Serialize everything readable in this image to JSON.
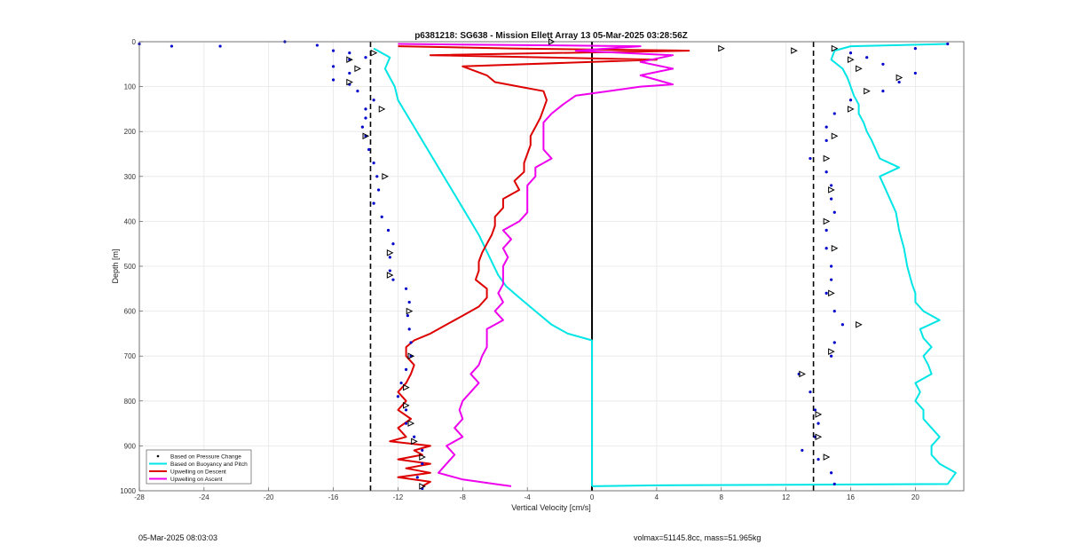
{
  "chart_data": {
    "type": "scatter",
    "title": "p6381218: SG638 - Mission Ellett Array 13 05-Mar-2025 03:28:56Z",
    "xlabel": "Vertical Velocity [cm/s]",
    "ylabel": "Depth [m]",
    "xlim": [
      -28,
      23
    ],
    "ylim": [
      1000,
      0
    ],
    "x_ticks": [
      -28,
      -24,
      -20,
      -16,
      -12,
      -8,
      -4,
      0,
      4,
      8,
      12,
      16,
      20
    ],
    "y_ticks": [
      0,
      100,
      200,
      300,
      400,
      500,
      600,
      700,
      800,
      900,
      1000
    ],
    "grid": true,
    "legend_position": "bottom-left",
    "reference_lines": {
      "dashed_x": [
        -13.7,
        13.7
      ],
      "solid_x": [
        0
      ]
    },
    "series": [
      {
        "name": "Based on Pressure Change",
        "style": "points",
        "color": "#0000cc",
        "descent": [
          [
            -28,
            5
          ],
          [
            -26,
            10
          ],
          [
            -23,
            10
          ],
          [
            -19,
            0
          ],
          [
            -17,
            8
          ],
          [
            -16,
            20
          ],
          [
            -15,
            25
          ],
          [
            -14,
            35
          ],
          [
            -15,
            40
          ],
          [
            -16,
            55
          ],
          [
            -15,
            70
          ],
          [
            -16,
            85
          ],
          [
            -15,
            95
          ],
          [
            -14.5,
            110
          ],
          [
            -13.5,
            130
          ],
          [
            -14,
            150
          ],
          [
            -14,
            170
          ],
          [
            -14.2,
            190
          ],
          [
            -14,
            210
          ],
          [
            -13.8,
            240
          ],
          [
            -13.5,
            270
          ],
          [
            -13.3,
            300
          ],
          [
            -13.2,
            330
          ],
          [
            -13.5,
            360
          ],
          [
            -13,
            390
          ],
          [
            -12.6,
            420
          ],
          [
            -12.3,
            450
          ],
          [
            -12.5,
            480
          ],
          [
            -12.5,
            510
          ],
          [
            -12.3,
            530
          ],
          [
            -11.5,
            550
          ],
          [
            -11.3,
            580
          ],
          [
            -11.4,
            610
          ],
          [
            -11.3,
            640
          ],
          [
            -11.2,
            670
          ],
          [
            -11.2,
            700
          ],
          [
            -11.5,
            730
          ],
          [
            -11.8,
            760
          ],
          [
            -12,
            790
          ],
          [
            -11.5,
            820
          ],
          [
            -11.5,
            850
          ],
          [
            -11,
            880
          ],
          [
            -10.5,
            910
          ],
          [
            -10.5,
            940
          ],
          [
            -10.8,
            970
          ],
          [
            -10.5,
            995
          ]
        ],
        "ascent": [
          [
            22,
            5
          ],
          [
            20,
            15
          ],
          [
            16,
            25
          ],
          [
            17,
            35
          ],
          [
            18,
            50
          ],
          [
            20,
            70
          ],
          [
            19,
            90
          ],
          [
            18,
            110
          ],
          [
            16,
            130
          ],
          [
            15,
            160
          ],
          [
            14.5,
            190
          ],
          [
            14.5,
            220
          ],
          [
            13.5,
            260
          ],
          [
            14.5,
            290
          ],
          [
            14.8,
            320
          ],
          [
            14.8,
            350
          ],
          [
            15,
            380
          ],
          [
            14.5,
            420
          ],
          [
            14.5,
            460
          ],
          [
            14.8,
            500
          ],
          [
            14.8,
            530
          ],
          [
            14.5,
            560
          ],
          [
            15,
            600
          ],
          [
            15.5,
            630
          ],
          [
            15,
            670
          ],
          [
            14.8,
            700
          ],
          [
            12.8,
            740
          ],
          [
            13.5,
            780
          ],
          [
            13.8,
            820
          ],
          [
            14,
            850
          ],
          [
            13.8,
            880
          ],
          [
            13,
            910
          ],
          [
            14,
            930
          ],
          [
            14.8,
            960
          ],
          [
            15,
            985
          ]
        ]
      },
      {
        "name": "Based on Buoyancy and Pitch",
        "style": "line",
        "color": "#00e5e5",
        "descent": [
          [
            -13.5,
            15
          ],
          [
            -12.5,
            35
          ],
          [
            -12.8,
            60
          ],
          [
            -12.5,
            80
          ],
          [
            -12.2,
            100
          ],
          [
            -12,
            130
          ],
          [
            -11.5,
            160
          ],
          [
            -11,
            190
          ],
          [
            -10.5,
            220
          ],
          [
            -10,
            250
          ],
          [
            -9.5,
            280
          ],
          [
            -9,
            310
          ],
          [
            -8.5,
            340
          ],
          [
            -8,
            370
          ],
          [
            -7.5,
            400
          ],
          [
            -7,
            430
          ],
          [
            -6.6,
            460
          ],
          [
            -6.2,
            490
          ],
          [
            -5.8,
            520
          ],
          [
            -5.3,
            545
          ],
          [
            -4.5,
            570
          ],
          [
            -3.5,
            600
          ],
          [
            -2.5,
            630
          ],
          [
            -1.5,
            650
          ],
          [
            -0.3,
            662
          ],
          [
            0,
            665
          ],
          [
            0,
            990
          ]
        ],
        "ascent": [
          [
            0,
            990
          ],
          [
            4,
            988
          ],
          [
            22,
            985
          ],
          [
            22.5,
            960
          ],
          [
            21.5,
            940
          ],
          [
            21,
            920
          ],
          [
            21,
            900
          ],
          [
            21.5,
            880
          ],
          [
            21,
            860
          ],
          [
            20.5,
            840
          ],
          [
            20.5,
            820
          ],
          [
            20,
            800
          ],
          [
            20.3,
            780
          ],
          [
            20,
            760
          ],
          [
            21,
            740
          ],
          [
            20.8,
            720
          ],
          [
            20.5,
            700
          ],
          [
            21,
            680
          ],
          [
            20.5,
            660
          ],
          [
            20.3,
            640
          ],
          [
            21.5,
            620
          ],
          [
            20.5,
            600
          ],
          [
            20,
            580
          ],
          [
            20,
            560
          ],
          [
            19.8,
            540
          ],
          [
            19.5,
            500
          ],
          [
            19.3,
            460
          ],
          [
            19,
            420
          ],
          [
            18.8,
            380
          ],
          [
            18.3,
            340
          ],
          [
            17.8,
            300
          ],
          [
            19,
            280
          ],
          [
            17.8,
            260
          ],
          [
            17.3,
            220
          ],
          [
            17,
            200
          ],
          [
            16.8,
            180
          ],
          [
            16.5,
            160
          ],
          [
            16.5,
            140
          ],
          [
            16.2,
            120
          ],
          [
            16,
            100
          ],
          [
            15.8,
            80
          ],
          [
            15.5,
            60
          ],
          [
            14.8,
            40
          ],
          [
            15,
            20
          ],
          [
            16,
            10
          ],
          [
            22,
            5
          ]
        ]
      },
      {
        "name": "Upwelling on Descent",
        "style": "line",
        "color": "#dd0000",
        "values": [
          [
            -12,
            10
          ],
          [
            -5,
            15
          ],
          [
            6,
            20
          ],
          [
            -10,
            30
          ],
          [
            4,
            40
          ],
          [
            -8,
            55
          ],
          [
            -6.5,
            75
          ],
          [
            -6,
            90
          ],
          [
            -4.5,
            100
          ],
          [
            -3,
            110
          ],
          [
            -2.8,
            130
          ],
          [
            -3,
            150
          ],
          [
            -3.2,
            170
          ],
          [
            -3.5,
            190
          ],
          [
            -3.8,
            210
          ],
          [
            -3.8,
            230
          ],
          [
            -4,
            250
          ],
          [
            -4.2,
            270
          ],
          [
            -4.2,
            290
          ],
          [
            -4.8,
            310
          ],
          [
            -4.5,
            330
          ],
          [
            -5.5,
            350
          ],
          [
            -5.5,
            370
          ],
          [
            -6,
            390
          ],
          [
            -6,
            410
          ],
          [
            -6.2,
            430
          ],
          [
            -6.5,
            450
          ],
          [
            -6.8,
            470
          ],
          [
            -7,
            490
          ],
          [
            -7,
            510
          ],
          [
            -7.2,
            530
          ],
          [
            -6.5,
            550
          ],
          [
            -6.5,
            570
          ],
          [
            -7,
            590
          ],
          [
            -8,
            610
          ],
          [
            -9,
            630
          ],
          [
            -10,
            650
          ],
          [
            -11,
            665
          ],
          [
            -11.5,
            680
          ],
          [
            -11.5,
            700
          ],
          [
            -11,
            720
          ],
          [
            -11.2,
            740
          ],
          [
            -11.5,
            760
          ],
          [
            -12,
            780
          ],
          [
            -11.5,
            800
          ],
          [
            -12,
            820
          ],
          [
            -11.2,
            840
          ],
          [
            -12,
            860
          ],
          [
            -11.5,
            880
          ],
          [
            -12.5,
            890
          ],
          [
            -10,
            900
          ],
          [
            -11,
            910
          ],
          [
            -10.5,
            920
          ],
          [
            -12,
            930
          ],
          [
            -10,
            940
          ],
          [
            -11.5,
            950
          ],
          [
            -10,
            960
          ],
          [
            -12,
            970
          ],
          [
            -10,
            980
          ],
          [
            -10.5,
            990
          ]
        ]
      },
      {
        "name": "Upwelling on Ascent",
        "style": "line",
        "color": "#ee00ee",
        "values": [
          [
            -5,
            990
          ],
          [
            -6,
            985
          ],
          [
            -8,
            975
          ],
          [
            -9.5,
            960
          ],
          [
            -9,
            940
          ],
          [
            -8.5,
            920
          ],
          [
            -9,
            900
          ],
          [
            -8,
            880
          ],
          [
            -8.5,
            860
          ],
          [
            -8,
            840
          ],
          [
            -8.2,
            820
          ],
          [
            -8,
            800
          ],
          [
            -7.5,
            780
          ],
          [
            -7,
            760
          ],
          [
            -7.5,
            740
          ],
          [
            -7,
            720
          ],
          [
            -6.8,
            700
          ],
          [
            -6.5,
            680
          ],
          [
            -6.5,
            660
          ],
          [
            -6.5,
            640
          ],
          [
            -5.5,
            620
          ],
          [
            -6,
            600
          ],
          [
            -5.5,
            580
          ],
          [
            -5.8,
            560
          ],
          [
            -5.5,
            540
          ],
          [
            -5.5,
            520
          ],
          [
            -5.5,
            500
          ],
          [
            -5.2,
            480
          ],
          [
            -5.5,
            460
          ],
          [
            -5,
            440
          ],
          [
            -5.5,
            420
          ],
          [
            -4.5,
            400
          ],
          [
            -4,
            380
          ],
          [
            -4,
            360
          ],
          [
            -4,
            340
          ],
          [
            -4,
            320
          ],
          [
            -3.5,
            300
          ],
          [
            -3.5,
            280
          ],
          [
            -2.5,
            260
          ],
          [
            -3,
            240
          ],
          [
            -3,
            220
          ],
          [
            -3,
            200
          ],
          [
            -3,
            180
          ],
          [
            -2.5,
            160
          ],
          [
            -1.8,
            140
          ],
          [
            -1,
            120
          ],
          [
            1,
            110
          ],
          [
            3,
            100
          ],
          [
            5,
            95
          ],
          [
            4,
            85
          ],
          [
            3,
            75
          ],
          [
            5,
            60
          ],
          [
            3,
            45
          ],
          [
            5,
            30
          ],
          [
            -1,
            20
          ],
          [
            3,
            10
          ],
          [
            -12,
            5
          ]
        ]
      }
    ],
    "triangle_markers": [
      [
        -13.5,
        25
      ],
      [
        -15,
        40
      ],
      [
        -14.5,
        60
      ],
      [
        -15,
        90
      ],
      [
        -13,
        150
      ],
      [
        -14,
        210
      ],
      [
        -12.8,
        300
      ],
      [
        -12.5,
        470
      ],
      [
        -12.5,
        520
      ],
      [
        -11.3,
        600
      ],
      [
        -11.2,
        700
      ],
      [
        -11.5,
        770
      ],
      [
        -11.5,
        810
      ],
      [
        -11.2,
        850
      ],
      [
        -11,
        890
      ],
      [
        -10.5,
        925
      ],
      [
        -10.5,
        990
      ],
      [
        15,
        15
      ],
      [
        16,
        40
      ],
      [
        16.5,
        60
      ],
      [
        19,
        80
      ],
      [
        17,
        110
      ],
      [
        16,
        150
      ],
      [
        15,
        210
      ],
      [
        14.5,
        260
      ],
      [
        14.8,
        330
      ],
      [
        14.5,
        400
      ],
      [
        15,
        460
      ],
      [
        14.8,
        560
      ],
      [
        16.5,
        630
      ],
      [
        14.8,
        690
      ],
      [
        13,
        740
      ],
      [
        14,
        830
      ],
      [
        14,
        880
      ],
      [
        14.5,
        925
      ],
      [
        12.5,
        20
      ],
      [
        -2.5,
        0
      ],
      [
        8,
        15
      ]
    ]
  },
  "footer": {
    "left": "05-Mar-2025 08:03:03",
    "right": "volmax=51145.8cc, mass=51.965kg"
  }
}
